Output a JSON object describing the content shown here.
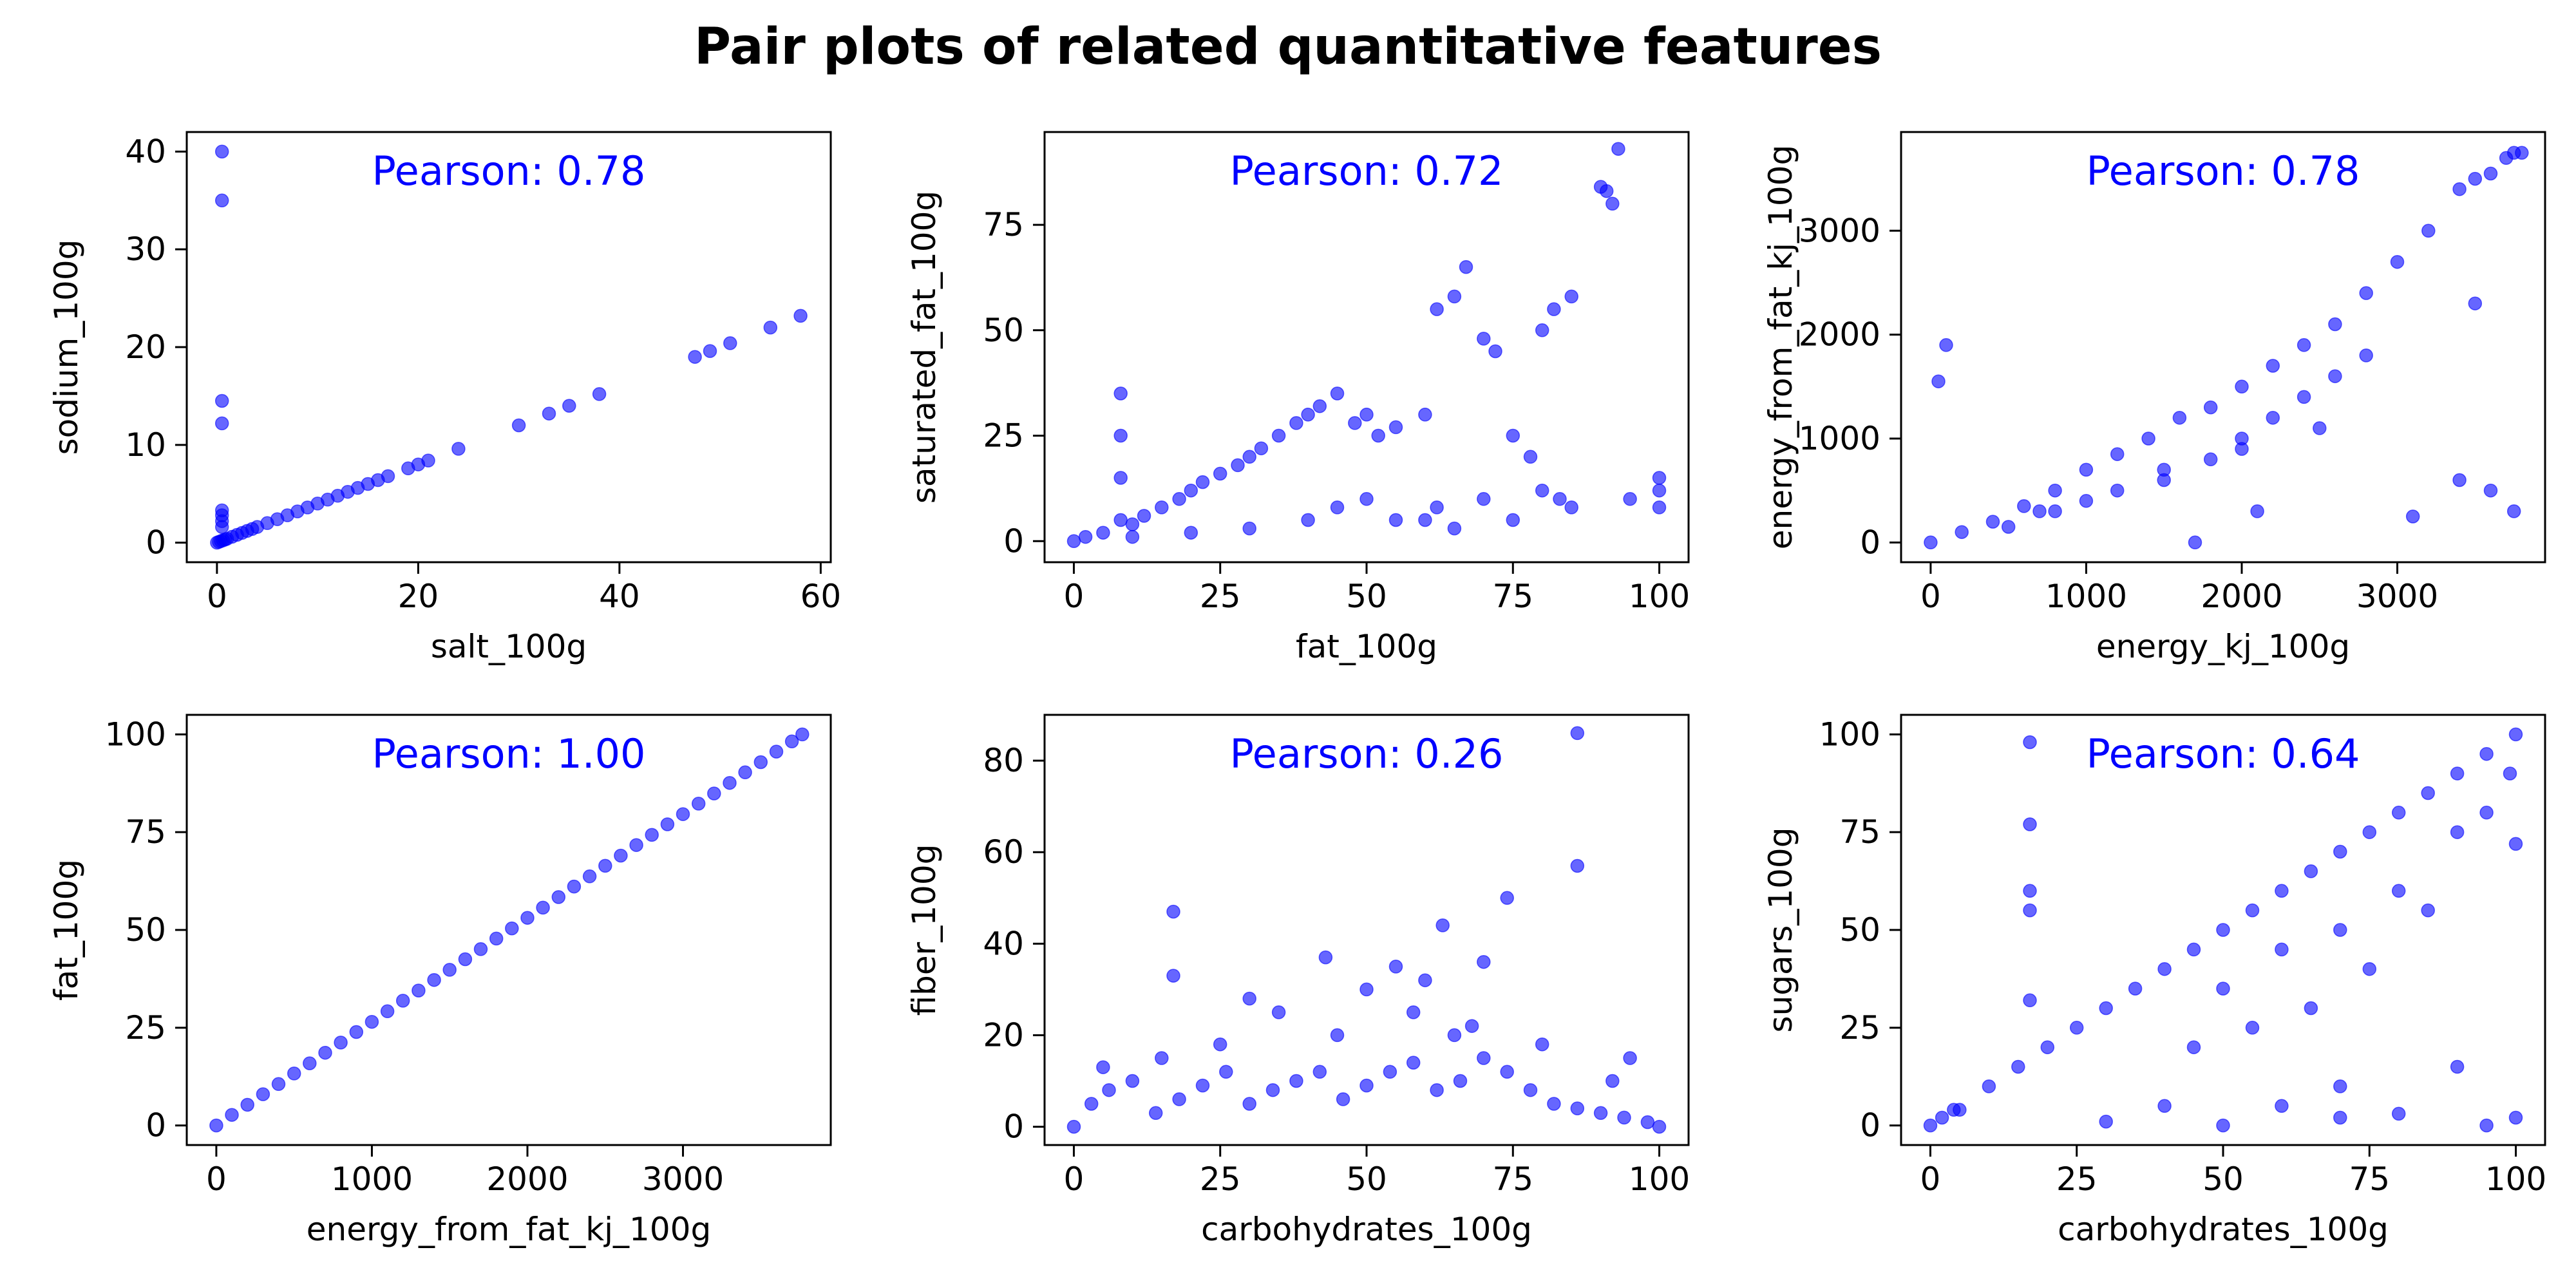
{
  "title": "Pair plots of related quantitative features",
  "colors": {
    "points": "#0000ff",
    "annotation": "#0000ff"
  },
  "chart_data": [
    {
      "type": "scatter",
      "xlabel": "salt_100g",
      "ylabel": "sodium_100g",
      "annotation": "Pearson: 0.78",
      "xlim": [
        -3,
        61
      ],
      "ylim": [
        -2,
        42
      ],
      "xticks": [
        0,
        20,
        40,
        60
      ],
      "yticks": [
        0,
        10,
        20,
        30,
        40
      ],
      "x": [
        0,
        0.2,
        0.4,
        0.6,
        0.8,
        1,
        1.5,
        2,
        2.5,
        3,
        3.5,
        4,
        5,
        6,
        7,
        8,
        9,
        10,
        11,
        12,
        13,
        14,
        15,
        16,
        17,
        19,
        20,
        21,
        24,
        30,
        33,
        35,
        38,
        47.5,
        49,
        51,
        55,
        58,
        0.5,
        0.5,
        0.5,
        0.5,
        0.5,
        0.5,
        0.5,
        0.5
      ],
      "y": [
        0,
        0.08,
        0.16,
        0.24,
        0.32,
        0.4,
        0.6,
        0.8,
        1,
        1.2,
        1.4,
        1.6,
        2,
        2.4,
        2.8,
        3.2,
        3.6,
        4,
        4.4,
        4.8,
        5.2,
        5.6,
        6,
        6.4,
        6.8,
        7.6,
        8,
        8.4,
        9.6,
        12,
        13.2,
        14,
        15.2,
        19,
        19.6,
        20.4,
        22,
        23.2,
        40,
        35,
        14.5,
        12.2,
        3.3,
        2.8,
        2.2,
        1.6
      ]
    },
    {
      "type": "scatter",
      "xlabel": "fat_100g",
      "ylabel": "saturated_fat_100g",
      "annotation": "Pearson: 0.72",
      "xlim": [
        -5,
        105
      ],
      "ylim": [
        -5,
        97
      ],
      "xticks": [
        0,
        25,
        50,
        75,
        100
      ],
      "yticks": [
        0,
        25,
        50,
        75
      ],
      "x": [
        0,
        2,
        5,
        8,
        8,
        8,
        8,
        10,
        12,
        15,
        18,
        20,
        22,
        25,
        28,
        30,
        32,
        35,
        38,
        40,
        42,
        45,
        48,
        50,
        52,
        55,
        60,
        62,
        65,
        67,
        70,
        72,
        75,
        78,
        80,
        82,
        85,
        90,
        91,
        92,
        93,
        100,
        100,
        100,
        60,
        62,
        70,
        80,
        83,
        10,
        20,
        30,
        40,
        45,
        50,
        55,
        65,
        75,
        85,
        95
      ],
      "y": [
        0,
        1,
        2,
        5,
        15,
        25,
        35,
        4,
        6,
        8,
        10,
        12,
        14,
        16,
        18,
        20,
        22,
        25,
        28,
        30,
        32,
        35,
        28,
        30,
        25,
        27,
        30,
        55,
        58,
        65,
        48,
        45,
        25,
        20,
        50,
        55,
        58,
        84,
        83,
        80,
        93,
        15,
        12,
        8,
        5,
        8,
        10,
        12,
        10,
        1,
        2,
        3,
        5,
        8,
        10,
        5,
        3,
        5,
        8,
        10
      ]
    },
    {
      "type": "scatter",
      "xlabel": "energy_kj_100g",
      "ylabel": "energy_from_fat_kj_100g",
      "annotation": "Pearson: 0.78",
      "xlim": [
        -190,
        3950
      ],
      "ylim": [
        -190,
        3950
      ],
      "xticks": [
        0,
        1000,
        2000,
        3000
      ],
      "yticks": [
        0,
        1000,
        2000,
        3000
      ],
      "x": [
        0,
        200,
        400,
        600,
        800,
        1000,
        1200,
        1400,
        1600,
        1800,
        2000,
        2200,
        2400,
        2600,
        2800,
        3000,
        3200,
        3400,
        3500,
        3600,
        3700,
        3750,
        3800,
        50,
        100,
        700,
        1000,
        1500,
        1800,
        2000,
        2200,
        2400,
        2600,
        2800,
        3100,
        3400,
        3500,
        3600,
        3750,
        500,
        800,
        1200,
        1500,
        2000,
        2500,
        1700,
        2100
      ],
      "y": [
        0,
        100,
        200,
        350,
        500,
        700,
        850,
        1000,
        1200,
        1300,
        1500,
        1700,
        1900,
        2100,
        2400,
        2700,
        3000,
        3400,
        3500,
        3550,
        3700,
        3750,
        3750,
        1550,
        1900,
        300,
        400,
        600,
        800,
        1000,
        1200,
        1400,
        1600,
        1800,
        250,
        600,
        2300,
        500,
        300,
        150,
        300,
        500,
        700,
        900,
        1100,
        0,
        300
      ]
    },
    {
      "type": "scatter",
      "xlabel": "energy_from_fat_kj_100g",
      "ylabel": "fat_100g",
      "annotation": "Pearson: 1.00",
      "xlim": [
        -190,
        3950
      ],
      "ylim": [
        -5,
        105
      ],
      "xticks": [
        0,
        1000,
        2000,
        3000
      ],
      "yticks": [
        0,
        25,
        50,
        75,
        100
      ],
      "x": [
        0,
        100,
        200,
        300,
        400,
        500,
        600,
        700,
        800,
        900,
        1000,
        1100,
        1200,
        1300,
        1400,
        1500,
        1600,
        1700,
        1800,
        1900,
        2000,
        2100,
        2200,
        2300,
        2400,
        2500,
        2600,
        2700,
        2800,
        2900,
        3000,
        3100,
        3200,
        3300,
        3400,
        3500,
        3600,
        3700,
        3767
      ],
      "y": [
        0,
        2.7,
        5.3,
        8,
        10.6,
        13.3,
        15.9,
        18.6,
        21.2,
        23.9,
        26.5,
        29.2,
        31.9,
        34.5,
        37.2,
        39.8,
        42.5,
        45.1,
        47.8,
        50.4,
        53.1,
        55.7,
        58.4,
        61.1,
        63.7,
        66.4,
        69,
        71.7,
        74.3,
        77,
        79.6,
        82.3,
        84.9,
        87.6,
        90.3,
        92.9,
        95.6,
        98.2,
        100
      ]
    },
    {
      "type": "scatter",
      "xlabel": "carbohydrates_100g",
      "ylabel": "fiber_100g",
      "annotation": "Pearson: 0.26",
      "xlim": [
        -5,
        105
      ],
      "ylim": [
        -4,
        90
      ],
      "xticks": [
        0,
        25,
        50,
        75,
        100
      ],
      "yticks": [
        0,
        20,
        40,
        60,
        80
      ],
      "x": [
        0,
        3,
        6,
        10,
        14,
        18,
        22,
        26,
        30,
        34,
        38,
        42,
        46,
        50,
        54,
        58,
        62,
        66,
        70,
        74,
        78,
        82,
        86,
        90,
        94,
        98,
        100,
        17,
        17,
        30,
        35,
        43,
        50,
        55,
        60,
        63,
        65,
        70,
        74,
        86,
        86,
        95,
        5,
        15,
        25,
        45,
        58,
        68,
        80,
        92
      ],
      "y": [
        0,
        5,
        8,
        10,
        3,
        6,
        9,
        12,
        5,
        8,
        10,
        12,
        6,
        9,
        12,
        14,
        8,
        10,
        15,
        12,
        8,
        5,
        4,
        3,
        2,
        1,
        0,
        47,
        33,
        28,
        25,
        37,
        30,
        35,
        32,
        44,
        20,
        36,
        50,
        57,
        86,
        15,
        13,
        15,
        18,
        20,
        25,
        22,
        18,
        10
      ]
    },
    {
      "type": "scatter",
      "xlabel": "carbohydrates_100g",
      "ylabel": "sugars_100g",
      "annotation": "Pearson: 0.64",
      "xlim": [
        -5,
        105
      ],
      "ylim": [
        -5,
        105
      ],
      "xticks": [
        0,
        25,
        50,
        75,
        100
      ],
      "yticks": [
        0,
        25,
        50,
        75,
        100
      ],
      "x": [
        0,
        2,
        4,
        5,
        10,
        15,
        20,
        25,
        30,
        35,
        40,
        45,
        50,
        55,
        60,
        65,
        70,
        75,
        80,
        85,
        90,
        95,
        100,
        17,
        17,
        17,
        17,
        17,
        40,
        45,
        50,
        55,
        60,
        65,
        70,
        75,
        80,
        85,
        90,
        95,
        100,
        60,
        70,
        80,
        90,
        100,
        30,
        50,
        70,
        95,
        99
      ],
      "y": [
        0,
        2,
        4,
        4,
        10,
        15,
        20,
        25,
        30,
        35,
        40,
        45,
        50,
        55,
        60,
        65,
        70,
        75,
        80,
        85,
        90,
        95,
        100,
        98,
        77,
        60,
        55,
        32,
        5,
        20,
        35,
        25,
        45,
        30,
        50,
        40,
        60,
        55,
        75,
        80,
        72,
        5,
        10,
        3,
        15,
        2,
        1,
        0,
        2,
        0,
        90
      ]
    }
  ]
}
